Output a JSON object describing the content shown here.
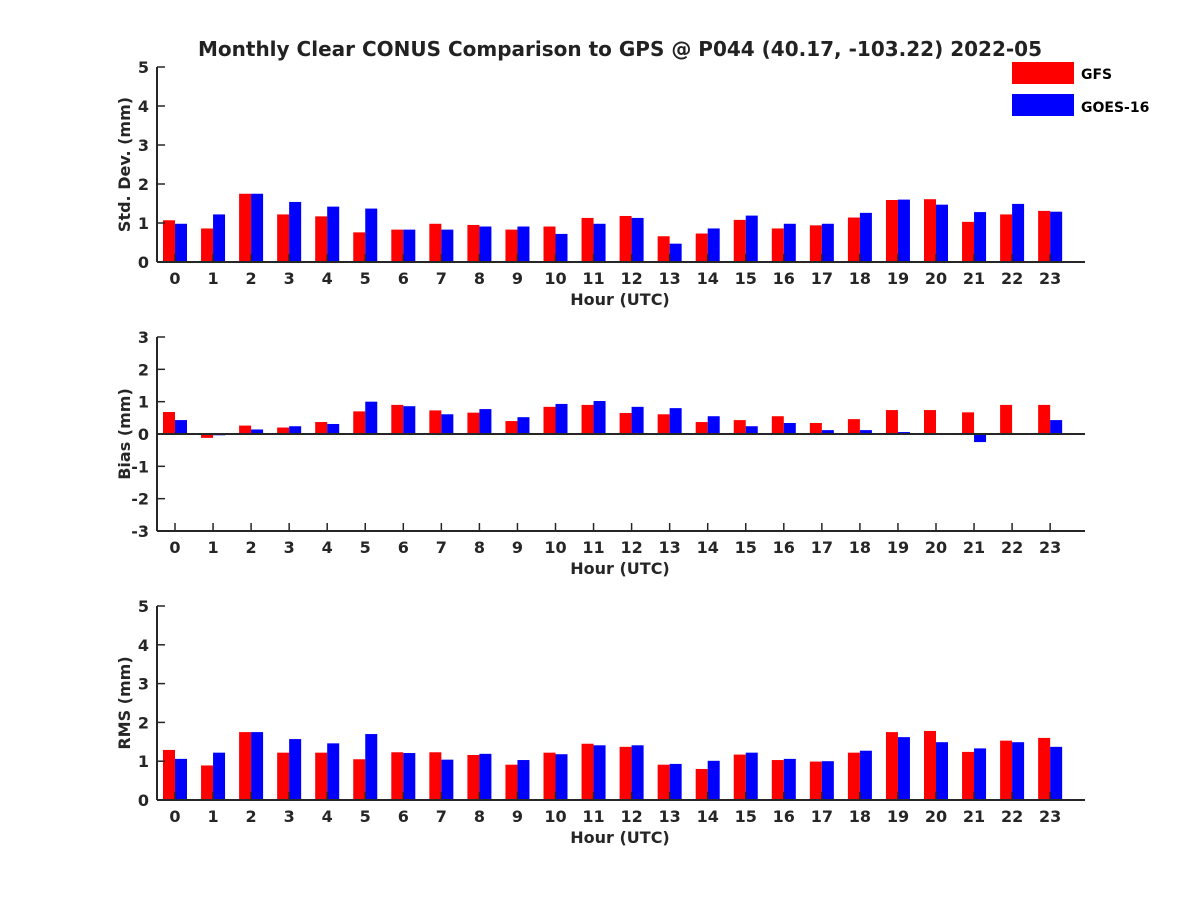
{
  "title": "Monthly Clear CONUS Comparison to GPS @ P044 (40.17, -103.22) 2022-05",
  "colors": {
    "GFS": "#ff0000",
    "GOES-16": "#0000ff",
    "axis": "#262626"
  },
  "legend": {
    "placement": "top-right",
    "entries": [
      "GFS",
      "GOES-16"
    ]
  },
  "chart_data": [
    {
      "type": "bar",
      "xlabel": "Hour (UTC)",
      "ylabel": "Std. Dev. (mm)",
      "ylim": [
        0,
        5
      ],
      "yticks": [
        0,
        1,
        2,
        3,
        4,
        5
      ],
      "categories": [
        "0",
        "1",
        "2",
        "3",
        "4",
        "5",
        "6",
        "7",
        "8",
        "9",
        "10",
        "11",
        "12",
        "13",
        "14",
        "15",
        "16",
        "17",
        "18",
        "19",
        "20",
        "21",
        "22",
        "23"
      ],
      "series": [
        {
          "name": "GFS",
          "values": [
            1.07,
            0.86,
            1.75,
            1.22,
            1.17,
            0.76,
            0.83,
            0.98,
            0.95,
            0.83,
            0.91,
            1.13,
            1.18,
            0.66,
            0.73,
            1.08,
            0.86,
            0.94,
            1.14,
            1.59,
            1.61,
            1.03,
            1.22,
            1.31
          ]
        },
        {
          "name": "GOES-16",
          "values": [
            0.98,
            1.22,
            1.75,
            1.54,
            1.42,
            1.37,
            0.83,
            0.83,
            0.91,
            0.91,
            0.72,
            0.98,
            1.13,
            0.47,
            0.86,
            1.19,
            0.98,
            0.98,
            1.26,
            1.6,
            1.47,
            1.28,
            1.49,
            1.29
          ]
        }
      ]
    },
    {
      "type": "bar",
      "xlabel": "Hour (UTC)",
      "ylabel": "Bias (mm)",
      "ylim": [
        -3,
        3
      ],
      "yticks": [
        -3,
        -2,
        -1,
        0,
        1,
        2,
        3
      ],
      "categories": [
        "0",
        "1",
        "2",
        "3",
        "4",
        "5",
        "6",
        "7",
        "8",
        "9",
        "10",
        "11",
        "12",
        "13",
        "14",
        "15",
        "16",
        "17",
        "18",
        "19",
        "20",
        "21",
        "22",
        "23"
      ],
      "series": [
        {
          "name": "GFS",
          "values": [
            0.68,
            -0.12,
            0.26,
            0.2,
            0.37,
            0.7,
            0.9,
            0.73,
            0.66,
            0.4,
            0.84,
            0.9,
            0.65,
            0.61,
            0.37,
            0.43,
            0.55,
            0.34,
            0.46,
            0.74,
            0.74,
            0.67,
            0.9,
            0.9
          ]
        },
        {
          "name": "GOES-16",
          "values": [
            0.43,
            -0.04,
            0.14,
            0.24,
            0.31,
            1.0,
            0.86,
            0.61,
            0.77,
            0.52,
            0.93,
            1.02,
            0.84,
            0.8,
            0.55,
            0.24,
            0.34,
            0.12,
            0.12,
            0.06,
            0.0,
            -0.25,
            0.03,
            0.43
          ]
        }
      ]
    },
    {
      "type": "bar",
      "xlabel": "Hour (UTC)",
      "ylabel": "RMS (mm)",
      "ylim": [
        0,
        5
      ],
      "yticks": [
        0,
        1,
        2,
        3,
        4,
        5
      ],
      "categories": [
        "0",
        "1",
        "2",
        "3",
        "4",
        "5",
        "6",
        "7",
        "8",
        "9",
        "10",
        "11",
        "12",
        "13",
        "14",
        "15",
        "16",
        "17",
        "18",
        "19",
        "20",
        "21",
        "22",
        "23"
      ],
      "series": [
        {
          "name": "GFS",
          "values": [
            1.29,
            0.89,
            1.75,
            1.22,
            1.22,
            1.05,
            1.23,
            1.23,
            1.16,
            0.91,
            1.22,
            1.45,
            1.37,
            0.91,
            0.8,
            1.17,
            1.03,
            0.99,
            1.22,
            1.75,
            1.78,
            1.24,
            1.53,
            1.6
          ]
        },
        {
          "name": "GOES-16",
          "values": [
            1.06,
            1.22,
            1.75,
            1.57,
            1.46,
            1.7,
            1.21,
            1.04,
            1.19,
            1.03,
            1.18,
            1.41,
            1.41,
            0.93,
            1.01,
            1.22,
            1.06,
            1.0,
            1.27,
            1.62,
            1.49,
            1.33,
            1.49,
            1.37
          ]
        }
      ]
    }
  ]
}
